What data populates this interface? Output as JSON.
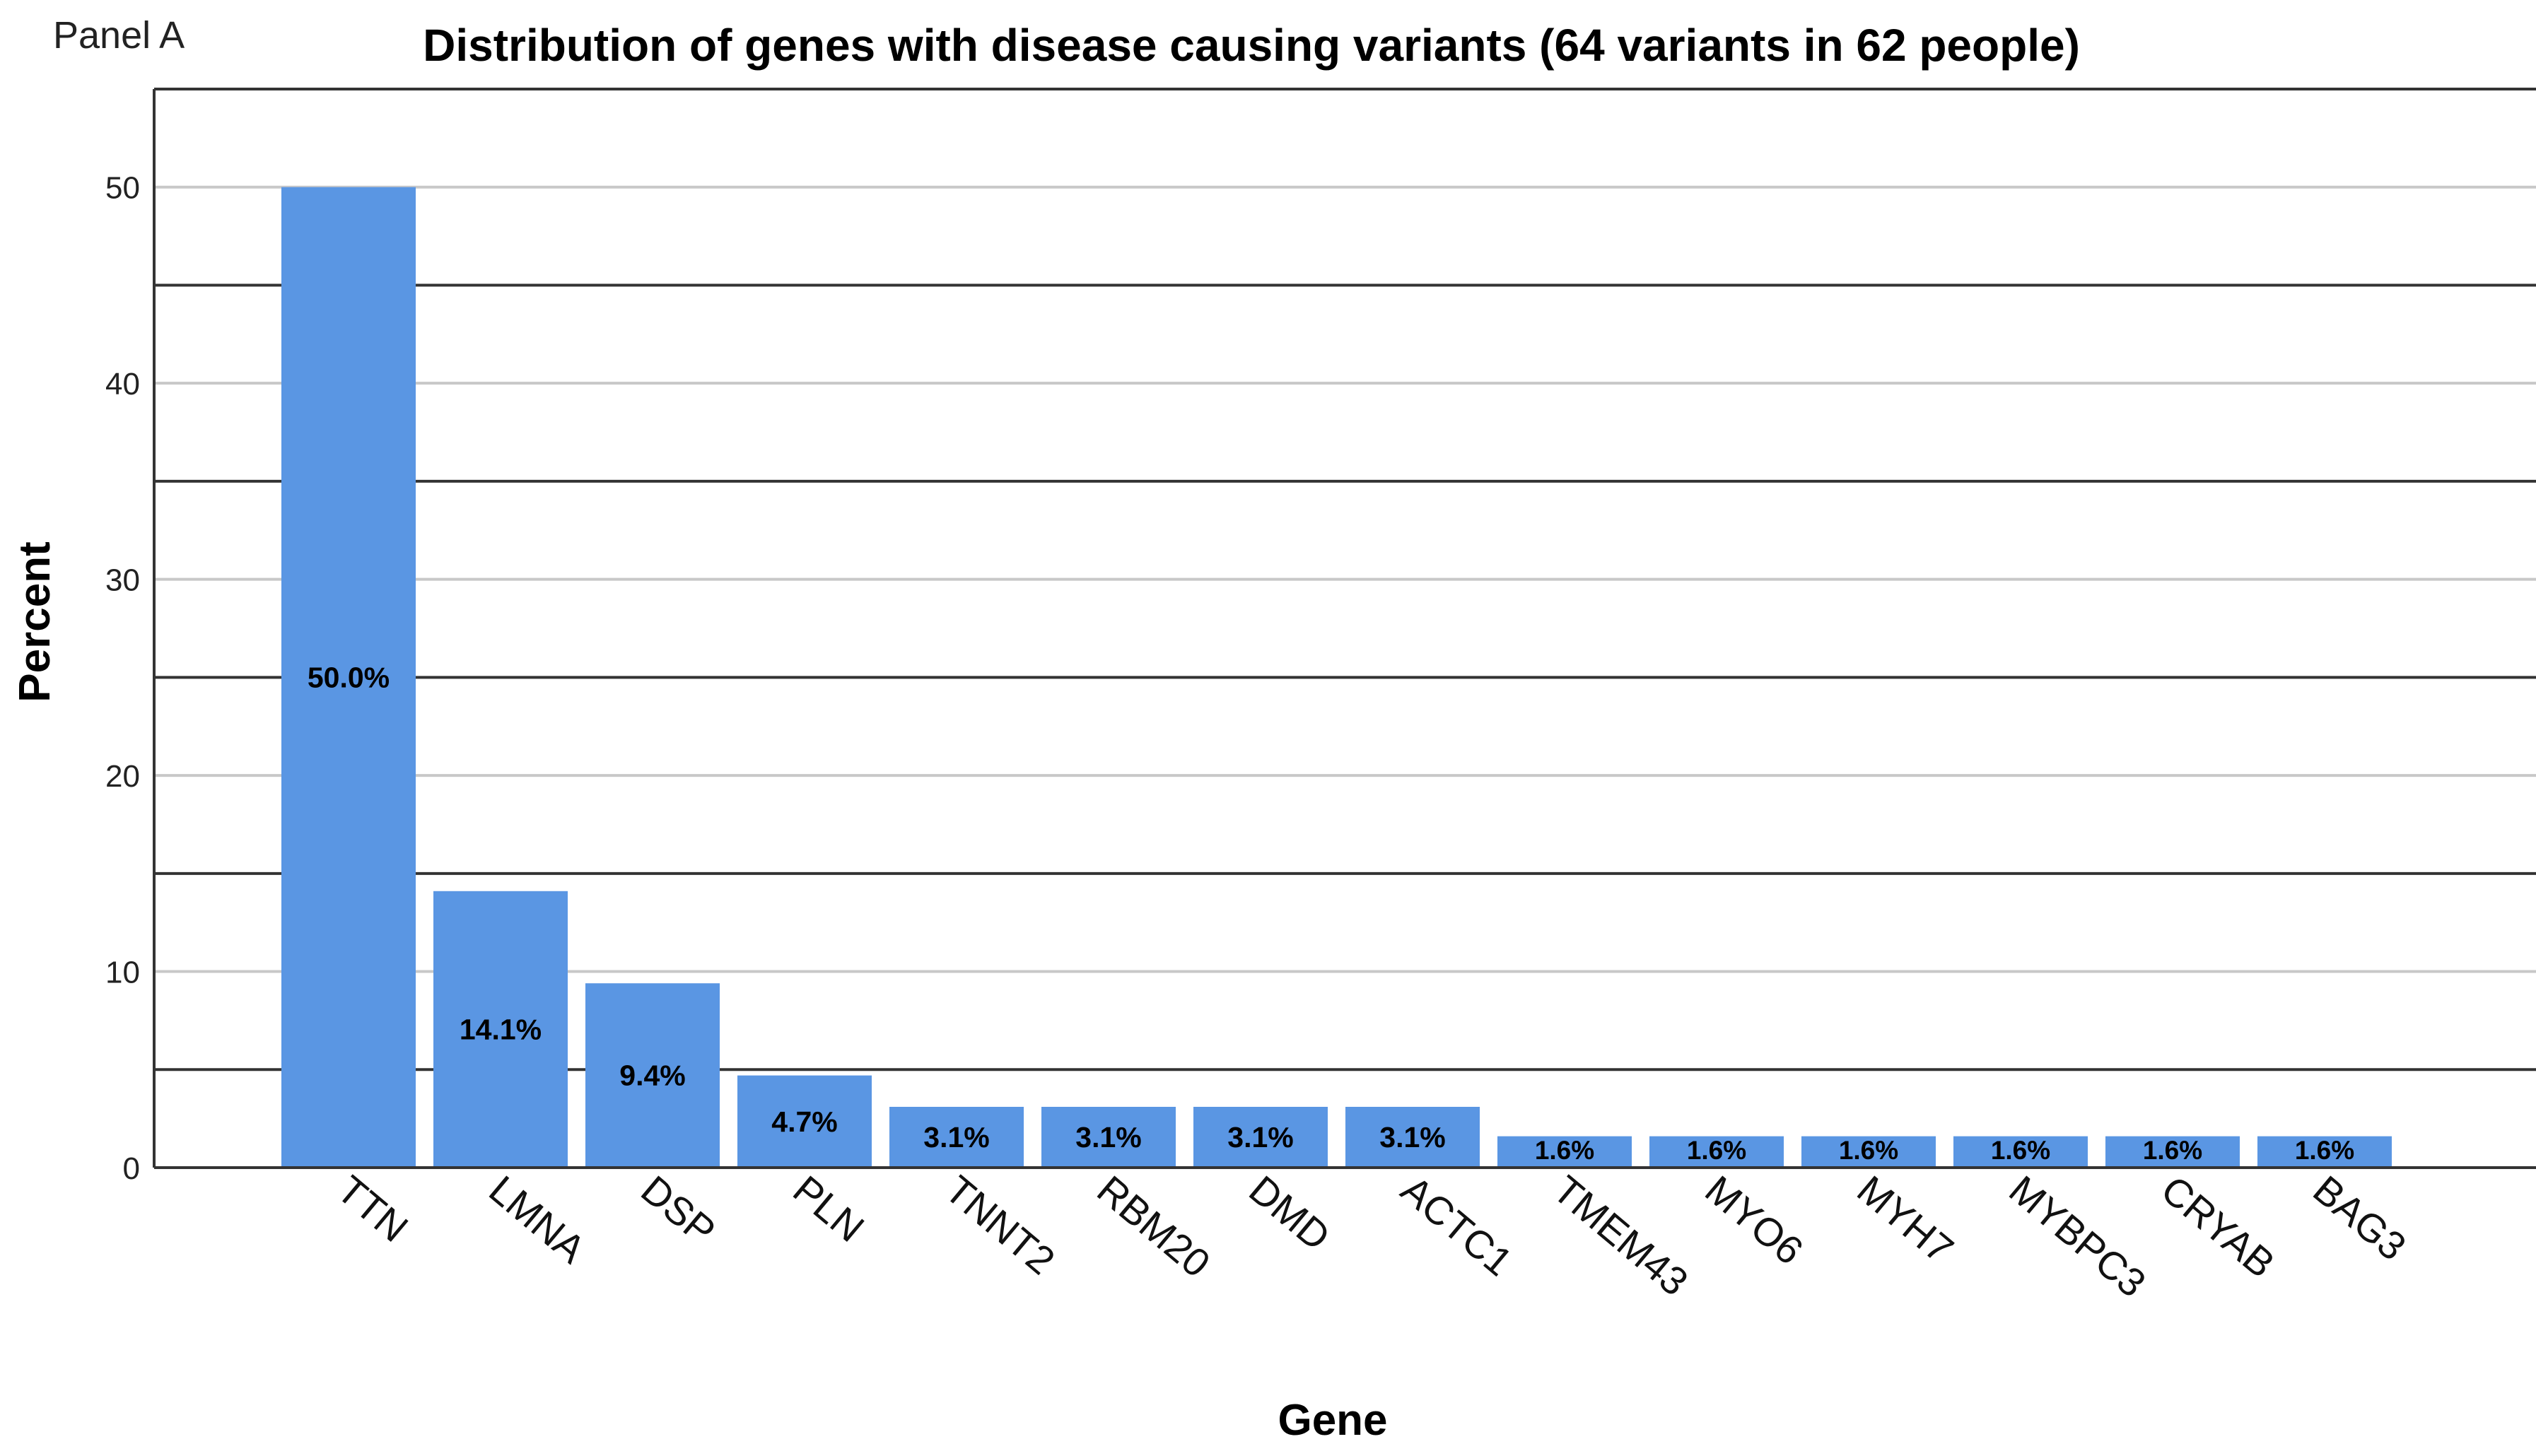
{
  "panel_label": "Panel A",
  "chart_data": {
    "type": "bar",
    "title": "Distribution of genes with disease causing variants (64 variants in 62 people)",
    "xlabel": "Gene",
    "ylabel": "Percent",
    "ylim": [
      0,
      55
    ],
    "yticks": [
      0,
      10,
      20,
      30,
      40,
      50
    ],
    "grid": true,
    "categories": [
      "TTN",
      "LMNA",
      "DSP",
      "PLN",
      "TNNT2",
      "RBM20",
      "DMD",
      "ACTC1",
      "TMEM43",
      "MYO6",
      "MYH7",
      "MYBPC3",
      "CRYAB",
      "BAG3"
    ],
    "values": [
      50.0,
      14.1,
      9.4,
      4.7,
      3.1,
      3.1,
      3.1,
      3.1,
      1.6,
      1.6,
      1.6,
      1.6,
      1.6,
      1.6
    ],
    "data_labels": [
      "50.0%",
      "14.1%",
      "9.4%",
      "4.7%",
      "3.1%",
      "3.1%",
      "3.1%",
      "3.1%",
      "1.6%",
      "1.6%",
      "1.6%",
      "1.6%",
      "1.6%",
      "1.6%"
    ],
    "bar_color": "#5a96e3",
    "gridline_colors": {
      "major": "#333333",
      "minor": "#c8c8c8"
    }
  }
}
